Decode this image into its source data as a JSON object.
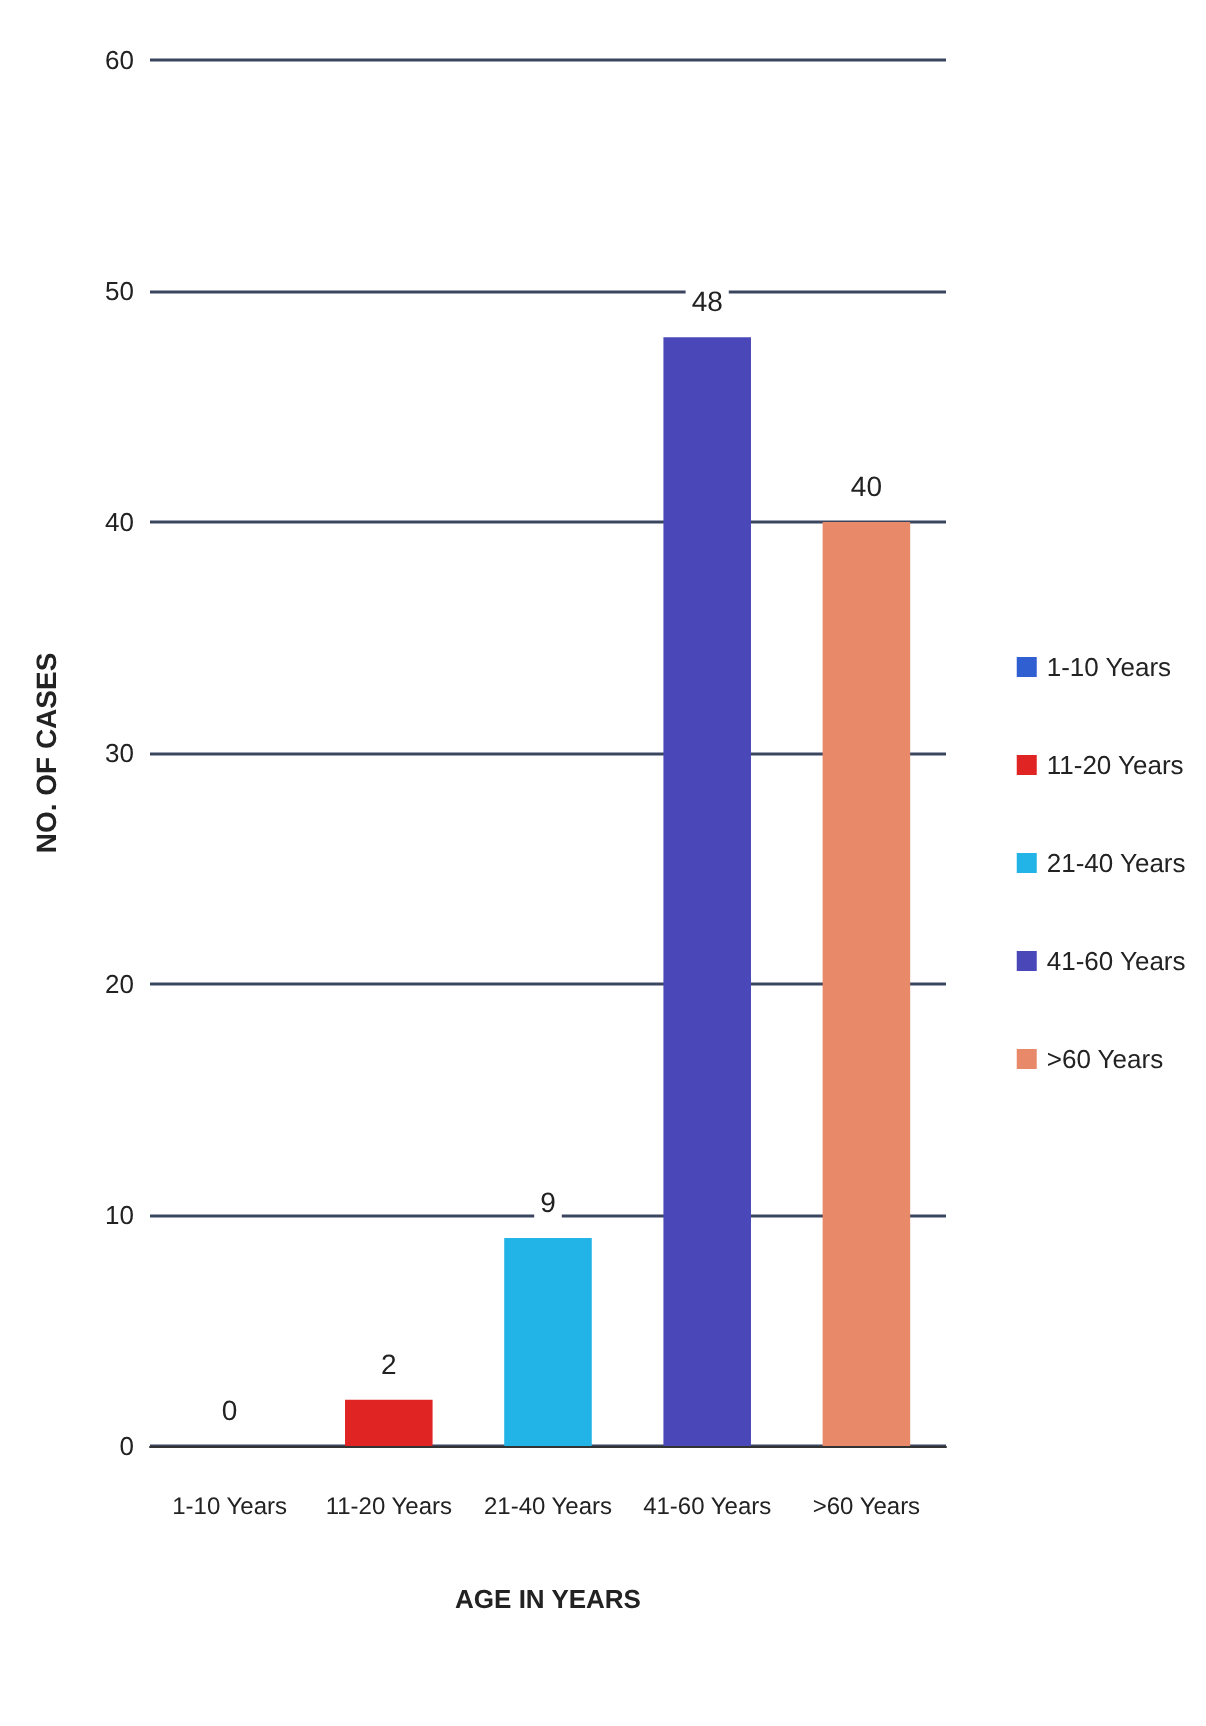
{
  "chart_data": {
    "type": "bar",
    "xlabel": "AGE IN YEARS",
    "ylabel": "NO. OF CASES",
    "categories": [
      "1-10 Years",
      "11-20 Years",
      "21-40 Years",
      "41-60 Years",
      ">60 Years"
    ],
    "series": [
      {
        "name": "1-10 Years",
        "color": "#2f5fd0",
        "values": [
          0,
          null,
          null,
          null,
          null
        ]
      },
      {
        "name": "11-20 Years",
        "color": "#e02424",
        "values": [
          null,
          2,
          null,
          null,
          null
        ]
      },
      {
        "name": "21-40 Years",
        "color": "#22b4e6",
        "values": [
          null,
          null,
          9,
          null,
          null
        ]
      },
      {
        "name": "41-60 Years",
        "color": "#4a48b8",
        "values": [
          null,
          null,
          null,
          48,
          null
        ]
      },
      {
        "name": ">60 Years",
        "color": "#e8896a",
        "values": [
          null,
          null,
          null,
          null,
          40
        ]
      }
    ],
    "ylim": [
      0,
      60
    ],
    "yticks": [
      0,
      10,
      20,
      30,
      40,
      50,
      60
    ],
    "grid": "y",
    "legend": "right",
    "data_labels": true
  }
}
